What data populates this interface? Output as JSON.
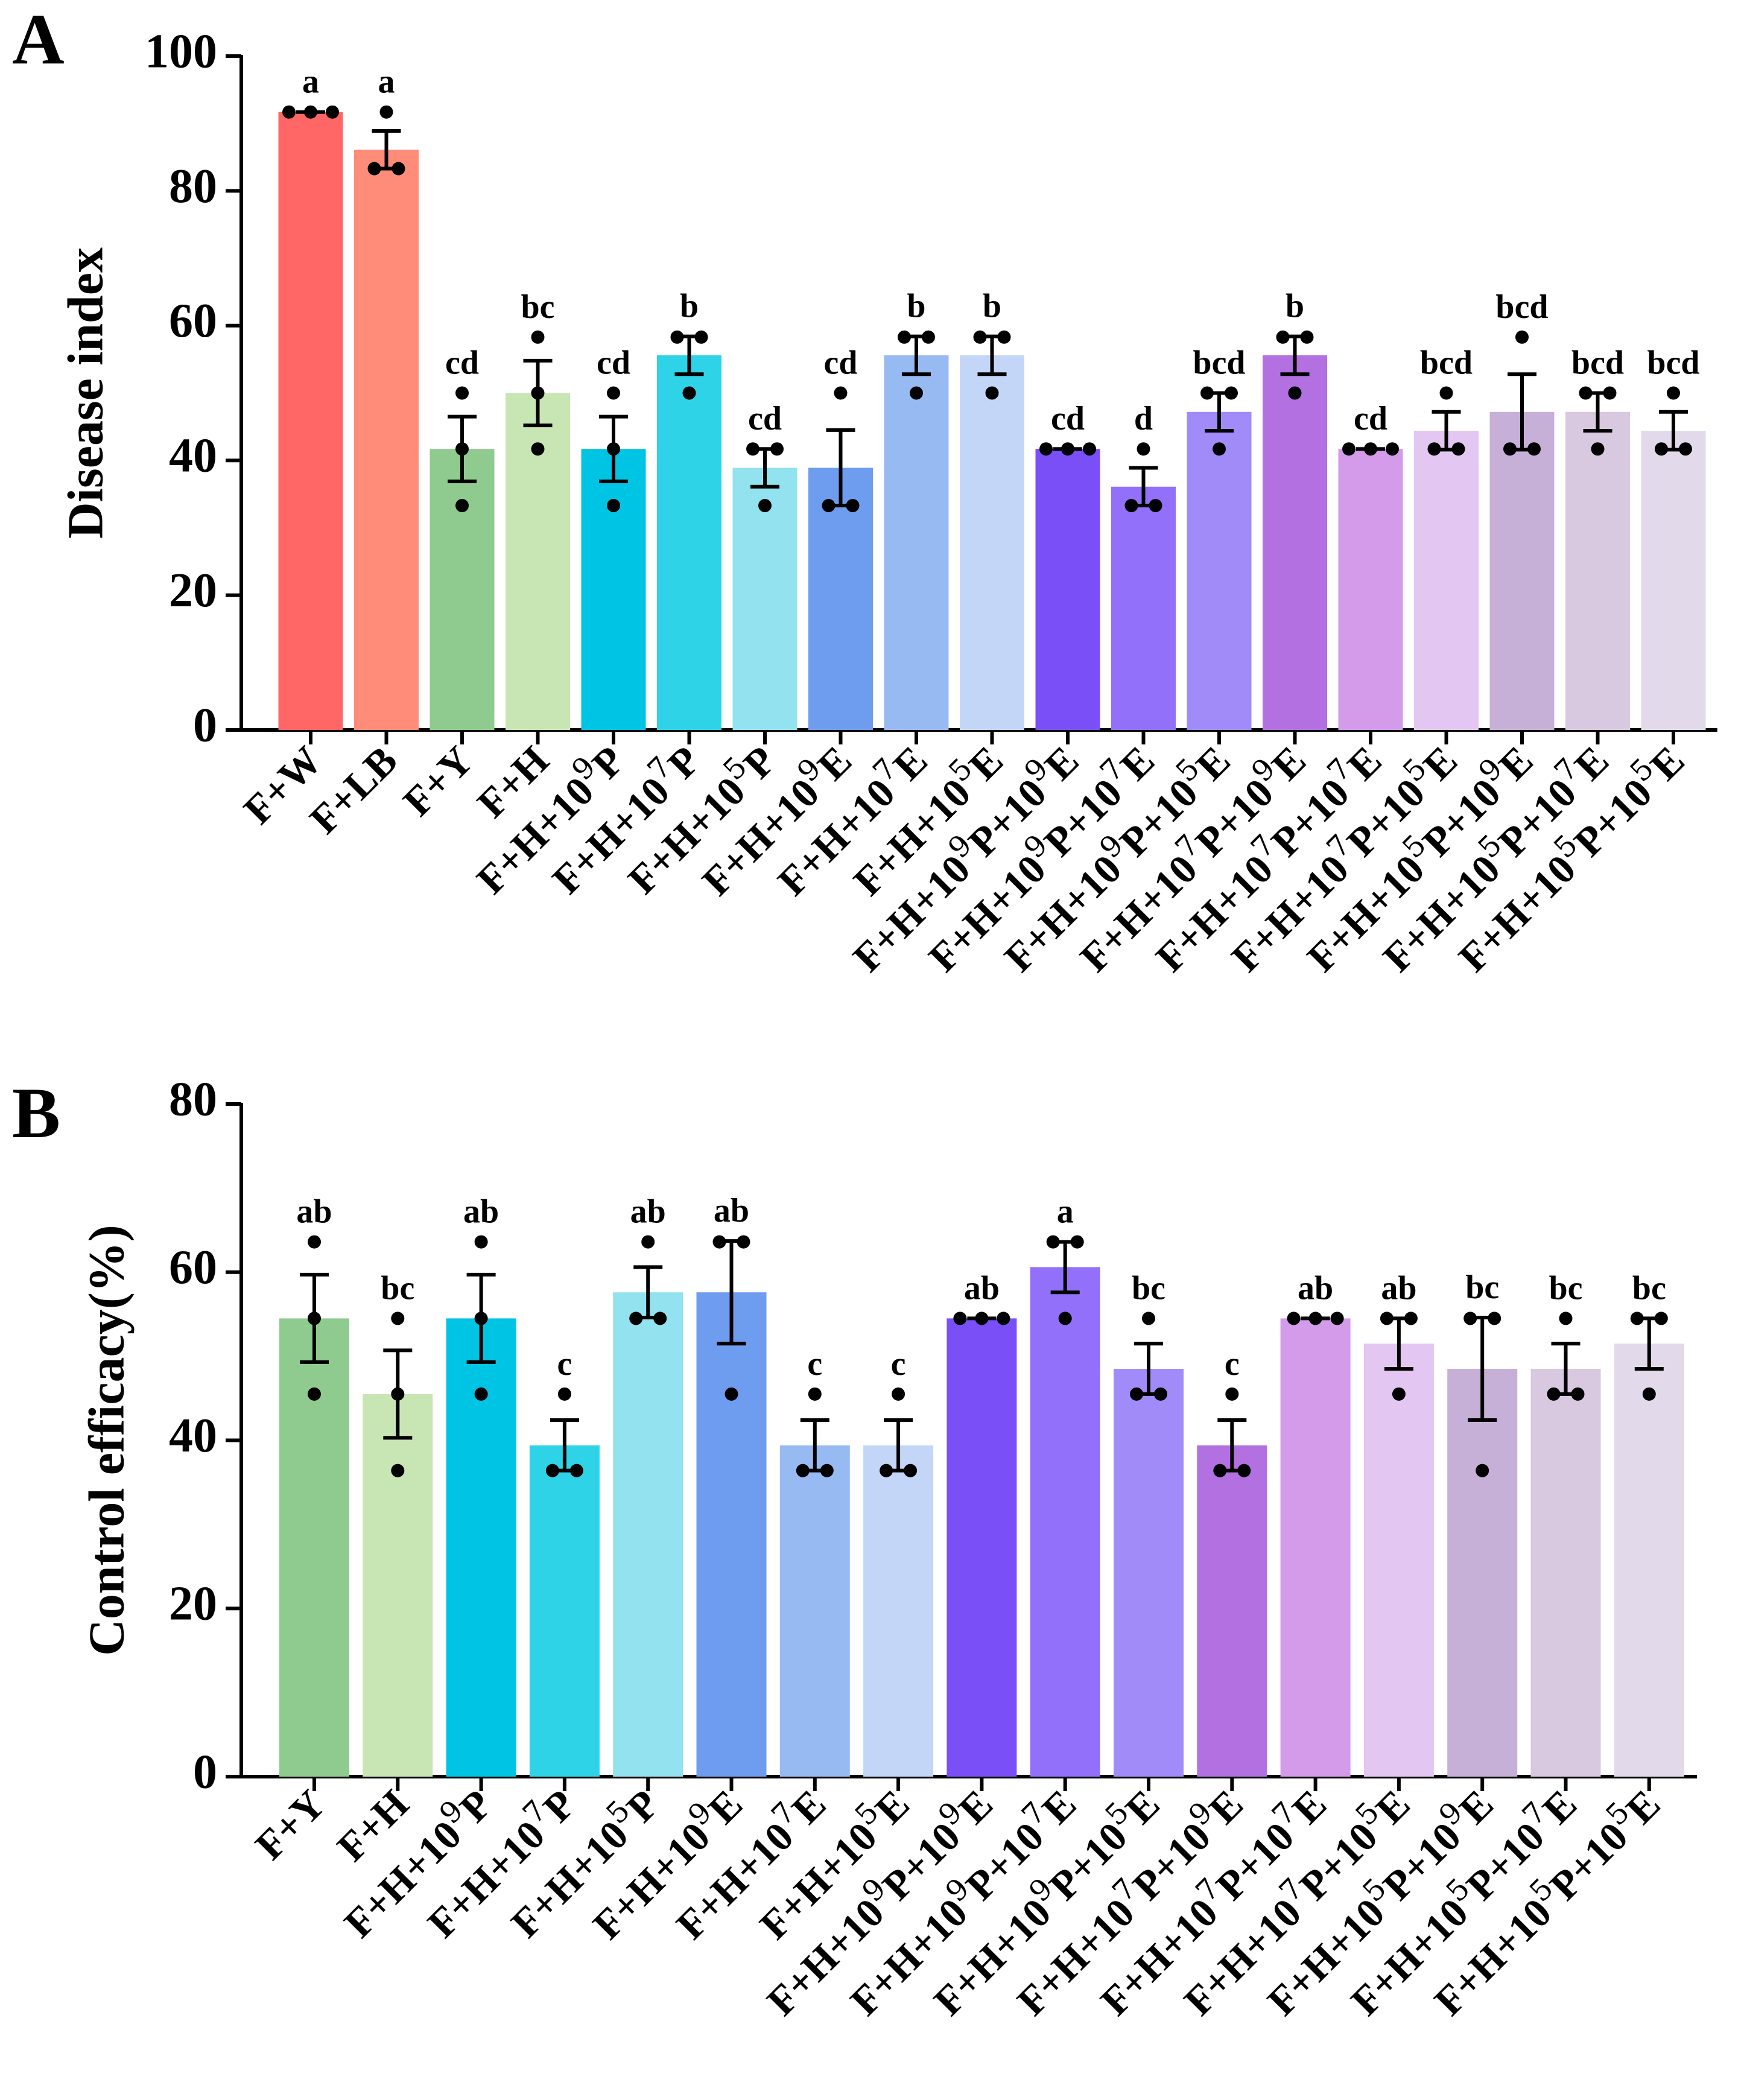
{
  "chart_data": [
    {
      "panel": "A",
      "type": "bar",
      "ylabel": "Disease index",
      "ylim": [
        0,
        100
      ],
      "yticks": [
        "0",
        "20",
        "40",
        "60",
        "80",
        "100"
      ],
      "categories": [
        "F+W",
        "F+LB",
        "F+Y",
        "F+H",
        "F+H+10^9P",
        "F+H+10^7P",
        "F+H+10^5P",
        "F+H+10^9E",
        "F+H+10^7E",
        "F+H+10^5E",
        "F+H+10^9P+10^9E",
        "F+H+10^9P+10^7E",
        "F+H+10^9P+10^5E",
        "F+H+10^7P+10^9E",
        "F+H+10^7P+10^7E",
        "F+H+10^7P+10^5E",
        "F+H+10^5P+10^9E",
        "F+H+10^5P+10^7E",
        "F+H+10^5P+10^5E"
      ],
      "values": [
        91.7,
        86.1,
        41.7,
        50.0,
        41.7,
        55.6,
        38.9,
        38.9,
        55.6,
        55.6,
        41.7,
        36.1,
        47.2,
        55.6,
        41.7,
        44.4,
        47.2,
        47.2,
        44.4
      ],
      "errors": [
        0.0,
        2.8,
        4.8,
        4.8,
        4.8,
        2.8,
        2.8,
        5.6,
        2.8,
        2.8,
        0.0,
        2.8,
        2.8,
        2.8,
        0.0,
        2.8,
        5.6,
        2.8,
        2.8
      ],
      "points": [
        [
          91.7,
          91.7,
          91.7
        ],
        [
          91.7,
          83.3,
          83.3
        ],
        [
          50.0,
          41.7,
          33.3
        ],
        [
          58.3,
          50.0,
          41.7
        ],
        [
          50.0,
          41.7,
          33.3
        ],
        [
          58.3,
          58.3,
          50.0
        ],
        [
          41.7,
          41.7,
          33.3
        ],
        [
          50.0,
          33.3,
          33.3
        ],
        [
          58.3,
          58.3,
          50.0
        ],
        [
          58.3,
          58.3,
          50.0
        ],
        [
          41.7,
          41.7,
          41.7
        ],
        [
          41.7,
          33.3,
          33.3
        ],
        [
          50.0,
          50.0,
          41.7
        ],
        [
          58.3,
          58.3,
          50.0
        ],
        [
          41.7,
          41.7,
          41.7
        ],
        [
          50.0,
          41.7,
          41.7
        ],
        [
          58.3,
          41.7,
          41.7
        ],
        [
          50.0,
          50.0,
          41.7
        ],
        [
          50.0,
          41.7,
          41.7
        ]
      ],
      "significance": [
        "a",
        "a",
        "cd",
        "bc",
        "cd",
        "b",
        "cd",
        "cd",
        "b",
        "b",
        "cd",
        "d",
        "bcd",
        "b",
        "cd",
        "bcd",
        "bcd",
        "bcd",
        "bcd"
      ],
      "colors": [
        "#FF6666",
        "#FF8C78",
        "#8FCB8F",
        "#C8E6B4",
        "#00C4E4",
        "#2ED3E8",
        "#92E2EF",
        "#6E9DF0",
        "#98BAF2",
        "#C4D6F8",
        "#7A4FF8",
        "#9270FA",
        "#A18BF8",
        "#B270E0",
        "#D39BEA",
        "#E4C6F2",
        "#C7B0D8",
        "#D8C8E0",
        "#E2DAEA"
      ]
    },
    {
      "panel": "B",
      "type": "bar",
      "ylabel": "Control efficacy(%)",
      "ylim": [
        0,
        80
      ],
      "yticks": [
        "0",
        "20",
        "40",
        "60",
        "80"
      ],
      "categories": [
        "F+Y",
        "F+H",
        "F+H+10^9P",
        "F+H+10^7P",
        "F+H+10^5P",
        "F+H+10^9E",
        "F+H+10^7E",
        "F+H+10^5E",
        "F+H+10^9P+10^9E",
        "F+H+10^9P+10^7E",
        "F+H+10^9P+10^5E",
        "F+H+10^7P+10^9E",
        "F+H+10^7P+10^7E",
        "F+H+10^7P+10^5E",
        "F+H+10^5P+10^9E",
        "F+H+10^5P+10^7E",
        "F+H+10^5P+10^5E"
      ],
      "values": [
        54.5,
        45.5,
        54.5,
        39.4,
        57.6,
        57.6,
        39.4,
        39.4,
        54.5,
        60.6,
        48.5,
        39.4,
        54.5,
        51.5,
        48.5,
        48.5,
        51.5
      ],
      "errors": [
        5.2,
        5.2,
        5.2,
        3.0,
        3.0,
        6.1,
        3.0,
        3.0,
        0.0,
        3.0,
        3.0,
        3.0,
        0.0,
        3.0,
        6.1,
        3.0,
        3.0
      ],
      "points": [
        [
          63.6,
          54.5,
          45.5
        ],
        [
          54.5,
          45.5,
          36.4
        ],
        [
          63.6,
          54.5,
          45.5
        ],
        [
          45.5,
          36.4,
          36.4
        ],
        [
          63.6,
          54.5,
          54.5
        ],
        [
          63.6,
          63.6,
          45.5
        ],
        [
          45.5,
          36.4,
          36.4
        ],
        [
          45.5,
          36.4,
          36.4
        ],
        [
          54.5,
          54.5,
          54.5
        ],
        [
          63.6,
          63.6,
          54.5
        ],
        [
          54.5,
          45.5,
          45.5
        ],
        [
          45.5,
          36.4,
          36.4
        ],
        [
          54.5,
          54.5,
          54.5
        ],
        [
          54.5,
          54.5,
          45.5
        ],
        [
          54.5,
          54.5,
          36.4
        ],
        [
          54.5,
          45.5,
          45.5
        ],
        [
          54.5,
          54.5,
          45.5
        ]
      ],
      "significance": [
        "ab",
        "bc",
        "ab",
        "c",
        "ab",
        "ab",
        "c",
        "c",
        "ab",
        "a",
        "bc",
        "c",
        "ab",
        "ab",
        "bc",
        "bc",
        "bc"
      ],
      "colors": [
        "#8FCB8F",
        "#C8E6B4",
        "#00C4E4",
        "#2ED3E8",
        "#92E2EF",
        "#6E9DF0",
        "#98BAF2",
        "#C4D6F8",
        "#7A4FF8",
        "#9270FA",
        "#A18BF8",
        "#B270E0",
        "#D39BEA",
        "#E4C6F2",
        "#C7B0D8",
        "#D8C8E0",
        "#E2DAEA"
      ]
    }
  ]
}
